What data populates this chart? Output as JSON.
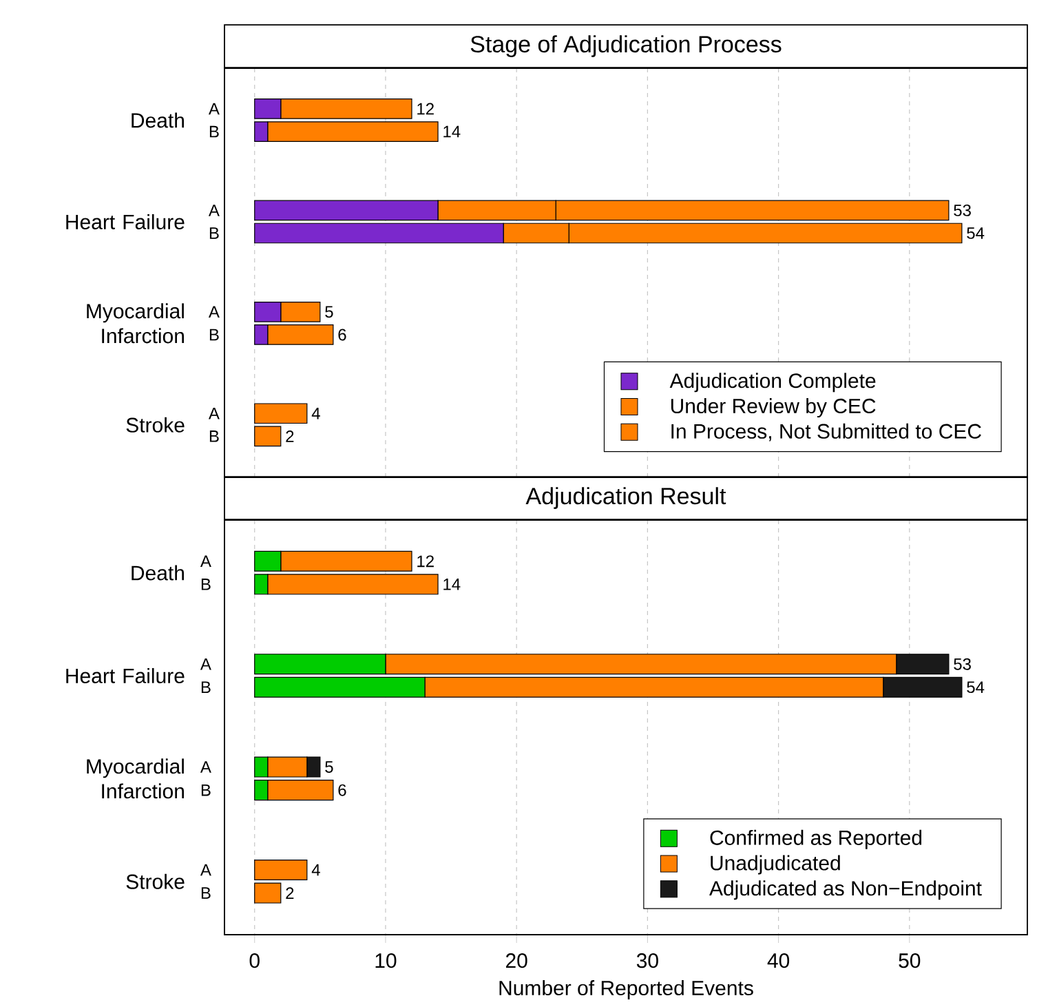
{
  "chart_data": [
    {
      "type": "bar",
      "orientation": "horizontal",
      "stacked": true,
      "title": "Stage of Adjudication Process",
      "categories": [
        "A",
        "B",
        "A",
        "B",
        "A",
        "B",
        "A",
        "B"
      ],
      "annotations": [
        "Death",
        "Heart Failure",
        "Myocardial Infarction",
        "Stroke"
      ],
      "series": [
        {
          "name": "Adjudication Complete",
          "color": "#7b28cc",
          "values": [
            2,
            1,
            14,
            19,
            2,
            1,
            0,
            0
          ]
        },
        {
          "name": "Under Review by CEC",
          "color": "#ff7f00",
          "values": [
            0,
            0,
            9,
            5,
            0,
            0,
            0,
            0
          ]
        },
        {
          "name": "In Process, Not Submitted to CEC",
          "color": "#ff7f00",
          "values": [
            10,
            13,
            30,
            30,
            3,
            5,
            4,
            2
          ]
        }
      ],
      "totals": [
        "12",
        "14",
        "53",
        "54",
        "5",
        "6",
        "4",
        "2"
      ],
      "xlim": [
        -2.3,
        59
      ],
      "xticks": [
        0,
        10,
        20,
        30,
        40,
        50
      ],
      "grid": "x",
      "legend": "bottom right",
      "tick_labels": "y"
    },
    {
      "type": "bar",
      "orientation": "horizontal",
      "stacked": true,
      "title": "Adjudication Result",
      "xlabel": "Number of Reported Events",
      "categories": [
        "A",
        "B",
        "A",
        "B",
        "A",
        "B",
        "A",
        "B"
      ],
      "annotations": [
        "Death",
        "Heart Failure",
        "Myocardial Infarction",
        "Stroke"
      ],
      "series": [
        {
          "name": "Confirmed as Reported",
          "color": "#00cc00",
          "values": [
            2,
            1,
            10,
            13,
            1,
            1,
            0,
            0
          ]
        },
        {
          "name": "Unadjudicated",
          "color": "#ff7f00",
          "values": [
            10,
            13,
            39,
            35,
            3,
            5,
            4,
            2
          ]
        },
        {
          "name": "Adjudicated as Non−Endpoint",
          "color": "#1a1a1a",
          "values": [
            0,
            0,
            4,
            6,
            1,
            0,
            0,
            0
          ]
        }
      ],
      "totals": [
        "12",
        "14",
        "53",
        "54",
        "5",
        "6",
        "4",
        "2"
      ],
      "xlim": [
        -2.3,
        59
      ],
      "xticks": [
        0,
        10,
        20,
        30,
        40,
        50
      ],
      "grid": "x",
      "legend": "bottom right"
    }
  ]
}
